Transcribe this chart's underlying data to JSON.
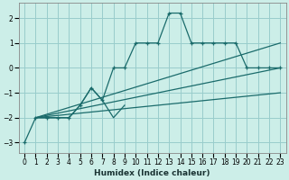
{
  "xlabel": "Humidex (Indice chaleur)",
  "ylabel": "",
  "bg_color": "#cceee8",
  "grid_color": "#99cccc",
  "line_color": "#1a6b6b",
  "xlim": [
    -0.5,
    23.5
  ],
  "ylim": [
    -3.4,
    2.6
  ],
  "xticks": [
    0,
    1,
    2,
    3,
    4,
    5,
    6,
    7,
    8,
    9,
    10,
    11,
    12,
    13,
    14,
    15,
    16,
    17,
    18,
    19,
    20,
    21,
    22,
    23
  ],
  "yticks": [
    -3,
    -2,
    -1,
    0,
    1,
    2
  ],
  "lines": [
    {
      "x": [
        0,
        1,
        2,
        3,
        4,
        5,
        6,
        7,
        8,
        9,
        10,
        11,
        12,
        13,
        14,
        15,
        16,
        17,
        18,
        19,
        20,
        21,
        22,
        23
      ],
      "y": [
        -3,
        -2,
        -2,
        -2,
        -2,
        -1.5,
        -0.8,
        -1.3,
        0.0,
        0.0,
        1.0,
        1.0,
        1.0,
        2.2,
        2.2,
        1.0,
        1.0,
        1.0,
        1.0,
        1.0,
        0.0,
        0.0,
        0.0,
        0.0
      ],
      "marker": "+"
    },
    {
      "x": [
        1,
        23
      ],
      "y": [
        -2.0,
        1.0
      ],
      "marker": null
    },
    {
      "x": [
        1,
        23
      ],
      "y": [
        -2.0,
        0.0
      ],
      "marker": null
    },
    {
      "x": [
        1,
        23
      ],
      "y": [
        -2.0,
        -1.0
      ],
      "marker": null
    },
    {
      "x": [
        1,
        4,
        5,
        6,
        7,
        8,
        9
      ],
      "y": [
        -2.0,
        -2.0,
        -1.5,
        -0.8,
        -1.3,
        -2.0,
        -1.5
      ],
      "marker": null
    }
  ]
}
